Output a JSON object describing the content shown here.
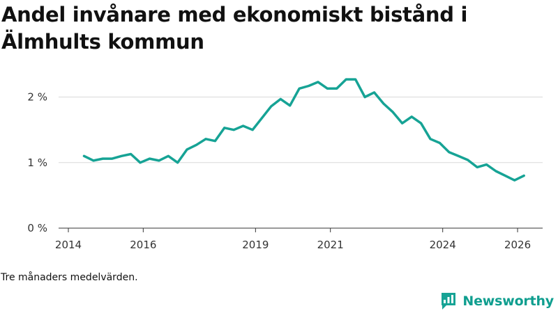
{
  "title": "Andel invånare med ekonomiskt bistånd i Älmhults kommun",
  "footnote": "Tre månaders medelvärden.",
  "brand": {
    "name": "Newsworthy",
    "icon": "newsworthy-logo-icon"
  },
  "colors": {
    "line": "#16a395",
    "grid": "#d9d9d9",
    "axis": "#333333",
    "brand": "#0f9e8f"
  },
  "chart_data": {
    "type": "line",
    "title": "Andel invånare med ekonomiskt bistånd i Älmhults kommun",
    "xlabel": "",
    "ylabel": "",
    "xlim": [
      2014,
      2026.6
    ],
    "ylim": [
      0,
      2.6
    ],
    "grid": true,
    "x_ticks": [
      2014,
      2016,
      2019,
      2021,
      2024,
      2026
    ],
    "x_tick_labels": [
      "2014",
      "2016",
      "2019",
      "2021",
      "2024",
      "2026"
    ],
    "y_ticks": [
      0,
      1,
      2
    ],
    "y_tick_labels": [
      "0 %",
      "1 %",
      "2 %"
    ],
    "series": [
      {
        "name": "Andel invånare med ekonomiskt bistånd",
        "x": [
          2014.42,
          2014.67,
          2014.92,
          2015.17,
          2015.42,
          2015.67,
          2015.92,
          2016.17,
          2016.42,
          2016.67,
          2016.92,
          2017.17,
          2017.42,
          2017.67,
          2017.92,
          2018.17,
          2018.42,
          2018.67,
          2018.92,
          2019.17,
          2019.42,
          2019.67,
          2019.92,
          2020.17,
          2020.42,
          2020.67,
          2020.92,
          2021.17,
          2021.42,
          2021.67,
          2021.92,
          2022.17,
          2022.42,
          2022.67,
          2022.92,
          2023.17,
          2023.42,
          2023.67,
          2023.92,
          2024.17,
          2024.42,
          2024.67,
          2024.92,
          2025.17,
          2025.42,
          2025.67,
          2025.92,
          2026.17
        ],
        "values": [
          1.1,
          1.03,
          1.06,
          1.06,
          1.1,
          1.13,
          1.0,
          1.06,
          1.03,
          1.1,
          1.0,
          1.2,
          1.27,
          1.36,
          1.33,
          1.53,
          1.5,
          1.56,
          1.5,
          1.68,
          1.86,
          1.97,
          1.87,
          2.13,
          2.17,
          2.23,
          2.13,
          2.13,
          2.27,
          2.27,
          2.0,
          2.07,
          1.9,
          1.77,
          1.6,
          1.7,
          1.6,
          1.36,
          1.3,
          1.16,
          1.1,
          1.04,
          0.93,
          0.97,
          0.87,
          0.8,
          0.73,
          0.8
        ]
      }
    ]
  }
}
